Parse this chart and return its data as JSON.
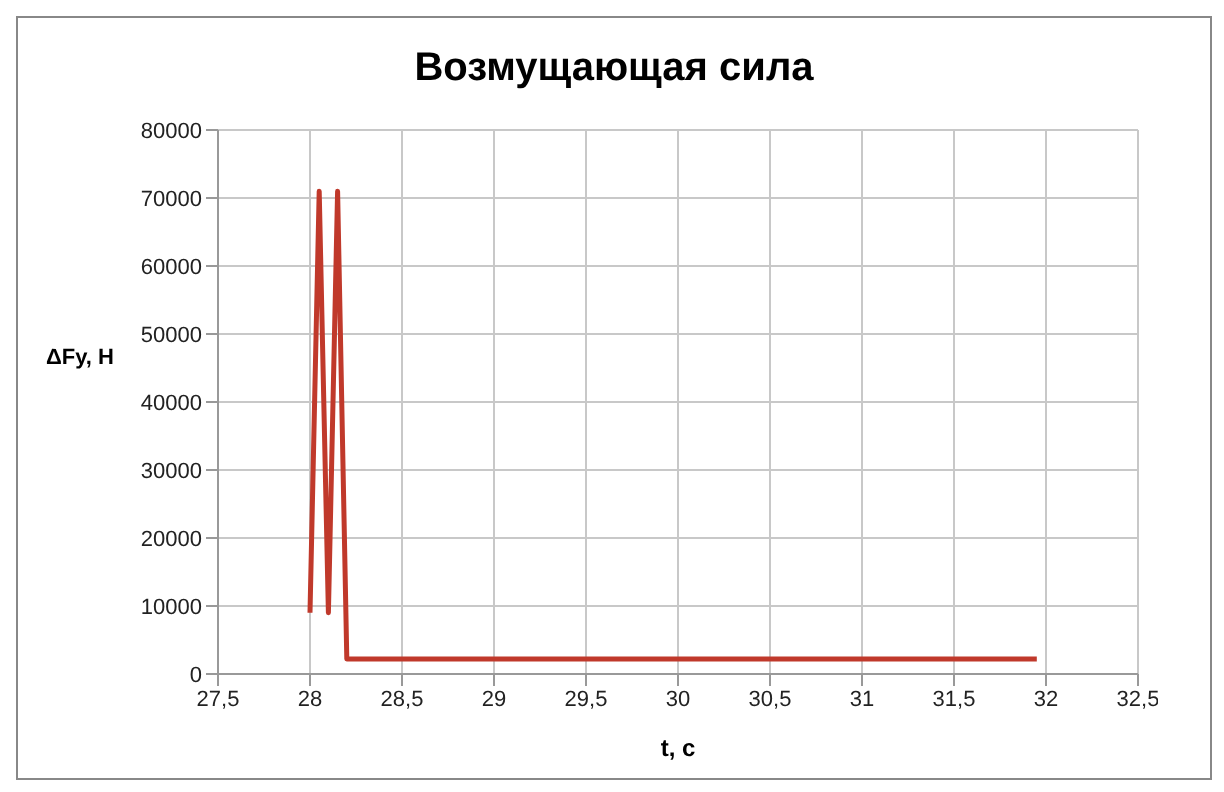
{
  "chart_data": {
    "type": "line",
    "title": "Возмущающая сила",
    "xlabel": "t, с",
    "ylabel": "ΔFy, Н",
    "x": [
      28.0,
      28.05,
      28.1,
      28.15,
      28.2,
      31.95
    ],
    "series": [
      {
        "color": "#c0392b",
        "values": [
          9000,
          71000,
          9000,
          71000,
          2200,
          2200
        ]
      }
    ],
    "xlim": [
      27.5,
      32.5
    ],
    "xticks": [
      {
        "value": 27.5,
        "label": "27,5"
      },
      28,
      {
        "value": 28.5,
        "label": "28,5"
      },
      29,
      {
        "value": 29.5,
        "label": "29,5"
      },
      30,
      {
        "value": 30.5,
        "label": "30,5"
      },
      31,
      {
        "value": 31.5,
        "label": "31,5"
      },
      32,
      {
        "value": 32.5,
        "label": "32,5"
      }
    ],
    "ylim": [
      0,
      80000
    ],
    "yticks": [
      0,
      10000,
      20000,
      30000,
      40000,
      50000,
      60000,
      70000,
      80000
    ],
    "grid": true,
    "marker": "none",
    "line_style": "solid"
  }
}
